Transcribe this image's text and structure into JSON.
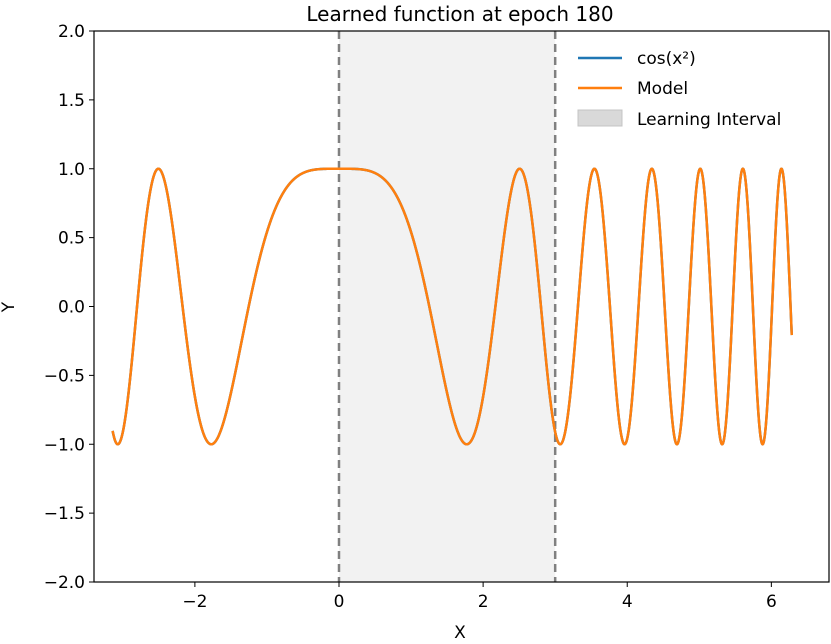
{
  "chart_data": {
    "type": "line",
    "title": "Learned function at epoch 180",
    "xlabel": "X",
    "ylabel": "Y",
    "xlim": [
      -3.4,
      6.8
    ],
    "ylim": [
      -2.0,
      2.0
    ],
    "x_range": [
      -3.1416,
      6.2832
    ],
    "xticks": [
      -2,
      0,
      2,
      4,
      6
    ],
    "xtick_labels": [
      "−2",
      "0",
      "2",
      "4",
      "6"
    ],
    "yticks": [
      -2.0,
      -1.5,
      -1.0,
      -0.5,
      0.0,
      0.5,
      1.0,
      1.5,
      2.0
    ],
    "ytick_labels": [
      "−2.0",
      "−1.5",
      "−1.0",
      "−0.5",
      "0.0",
      "0.5",
      "1.0",
      "1.5",
      "2.0"
    ],
    "grid": false,
    "legend_position": "top-right",
    "learning_interval": [
      0,
      3
    ],
    "series": [
      {
        "name": "cos(x²)",
        "color": "#1f77b4",
        "function": "cos(x^2)"
      },
      {
        "name": "Model",
        "color": "#ff7f0e",
        "function": "cos(x^2)"
      }
    ],
    "shaded_region": {
      "name": "Learning Interval",
      "color": "#d9d9d9"
    }
  }
}
